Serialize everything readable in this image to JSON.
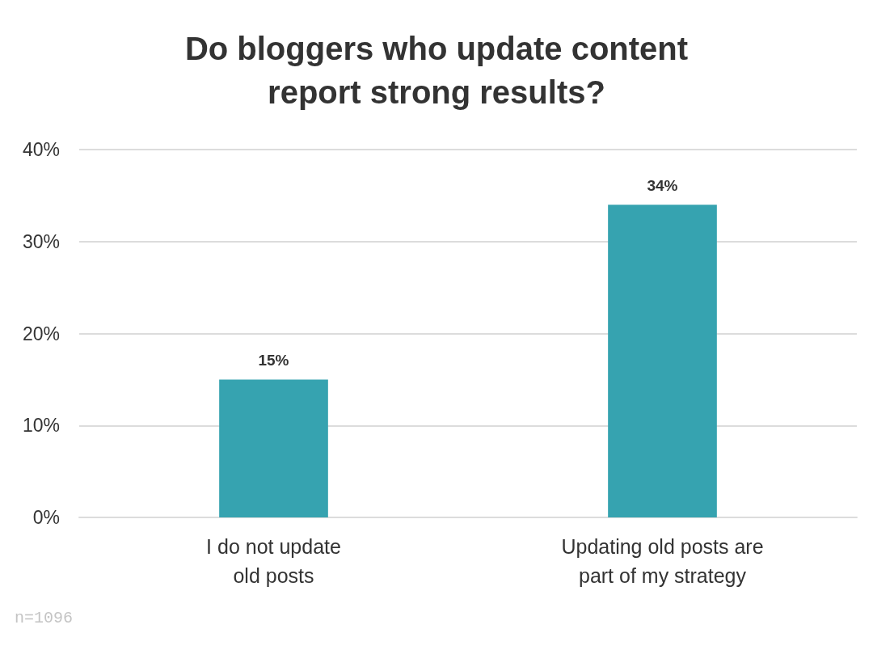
{
  "chart_data": {
    "type": "bar",
    "title": "Do bloggers who update content report strong results?",
    "categories": [
      "I do not update old posts",
      "Updating old posts are part of my strategy"
    ],
    "values": [
      15,
      34
    ],
    "color": "#36a3b0",
    "value_labels": [
      "15%",
      "34%"
    ],
    "ylim": [
      0,
      40
    ],
    "yticks": [
      {
        "value": 0,
        "label": "0%"
      },
      {
        "value": 10,
        "label": "10%"
      },
      {
        "value": 20,
        "label": "20%"
      },
      {
        "value": 30,
        "label": "30%"
      },
      {
        "value": 40,
        "label": "40%"
      }
    ],
    "grid": "y",
    "annotations": [
      "n=1096"
    ]
  }
}
